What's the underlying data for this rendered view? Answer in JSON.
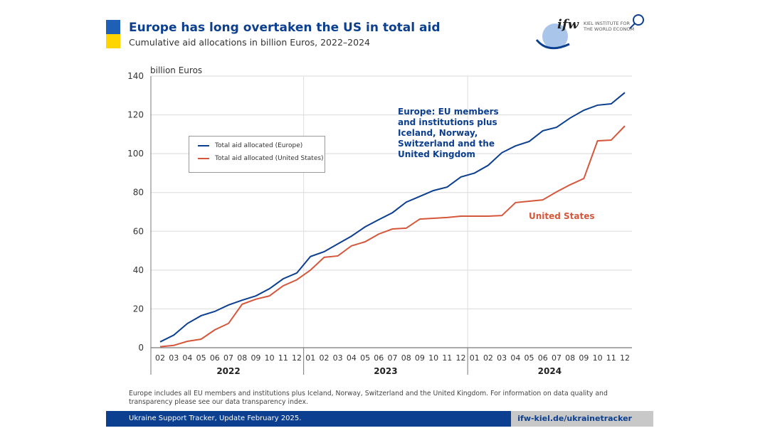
{
  "header": {
    "title": "Europe has long overtaken the US in total aid",
    "subtitle": "Cumulative aid allocations in billion Euros, 2022–2024",
    "logo_text": "ifw KIEL INSTITUTE FOR THE WORLD ECONOMY"
  },
  "colors": {
    "europe": "#0c3f8f",
    "us": "#d5573b",
    "flag_blue": "#1f5fb5",
    "flag_yellow": "#ffd500"
  },
  "chart_data": {
    "type": "line",
    "title": "Europe has long overtaken the US in total aid",
    "ylabel": "billion Euros",
    "ylim": [
      0,
      140
    ],
    "yticks": [
      0,
      20,
      40,
      60,
      80,
      100,
      120,
      140
    ],
    "x_months": [
      "02",
      "03",
      "04",
      "05",
      "06",
      "07",
      "08",
      "09",
      "10",
      "11",
      "12",
      "01",
      "02",
      "03",
      "04",
      "05",
      "06",
      "07",
      "08",
      "09",
      "10",
      "11",
      "12",
      "01",
      "02",
      "03",
      "04",
      "05",
      "06",
      "07",
      "08",
      "09",
      "10",
      "11",
      "12"
    ],
    "years": [
      {
        "label": "2022",
        "start": 0,
        "end": 10
      },
      {
        "label": "2023",
        "start": 11,
        "end": 22
      },
      {
        "label": "2024",
        "start": 23,
        "end": 34
      }
    ],
    "series": [
      {
        "name": "Total aid allocated (Europe)",
        "values": [
          3,
          6.5,
          12.5,
          16.5,
          18.7,
          22,
          24.5,
          26.7,
          30.4,
          35.5,
          38.5,
          47,
          49.5,
          53.5,
          57.5,
          62.3,
          66,
          69.6,
          75,
          78,
          81,
          82.8,
          88,
          90,
          94,
          100.5,
          104,
          106.3,
          111.8,
          113.6,
          118.4,
          122.4,
          125,
          125.7,
          131.5
        ]
      },
      {
        "name": "Total aid allocated (United States)",
        "values": [
          0.5,
          1.2,
          3.3,
          4.4,
          9.2,
          12.5,
          22.4,
          25,
          26.7,
          31.9,
          35,
          40,
          46.6,
          47.3,
          52.5,
          54.6,
          58.6,
          61.2,
          61.6,
          66.3,
          66.7,
          67.1,
          67.8,
          67.8,
          67.8,
          68.1,
          74.8,
          75.5,
          76.2,
          80.3,
          84,
          87.2,
          106.6,
          107,
          114.3
        ]
      }
    ],
    "annotations": {
      "europe": "Europe: EU members and institutions plus Iceland, Norway, Switzerland and the United Kingdom",
      "us": "United States"
    },
    "legend_placement": "upper-left"
  },
  "note": "Europe includes all EU members and institutions plus Iceland, Norway, Switzerland and the United Kingdom. For information on data quality and transparency please see our data transparency index.",
  "footer": {
    "left": "Ukraine Support Tracker, Update February 2025.",
    "right": "ifw-kiel.de/ukrainetracker"
  }
}
